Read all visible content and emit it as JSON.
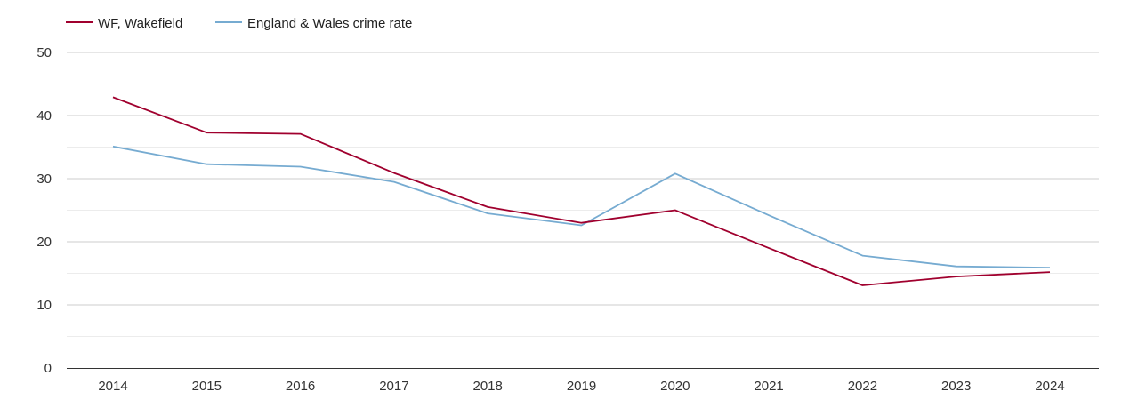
{
  "chart_data": {
    "type": "line",
    "title": "",
    "xlabel": "",
    "ylabel": "",
    "categories": [
      "2014",
      "2015",
      "2016",
      "2017",
      "2018",
      "2019",
      "2020",
      "2021",
      "2022",
      "2023",
      "2024"
    ],
    "y_ticks": [
      "0",
      "10",
      "20",
      "30",
      "40",
      "50"
    ],
    "ylim": [
      0,
      50
    ],
    "minor_gridlines": [
      5,
      15,
      25,
      35,
      45
    ],
    "legend_position": "top-left",
    "series": [
      {
        "name": "WF, Wakefield",
        "color": "#a0002e",
        "values": [
          42.9,
          37.3,
          37.1,
          30.9,
          25.5,
          23.0,
          25.0,
          19.0,
          13.1,
          14.5,
          15.2
        ]
      },
      {
        "name": "England & Wales crime rate",
        "color": "#76abd1",
        "values": [
          35.1,
          32.3,
          31.9,
          29.5,
          24.5,
          22.6,
          30.8,
          24.2,
          17.8,
          16.1,
          15.9
        ]
      }
    ]
  }
}
